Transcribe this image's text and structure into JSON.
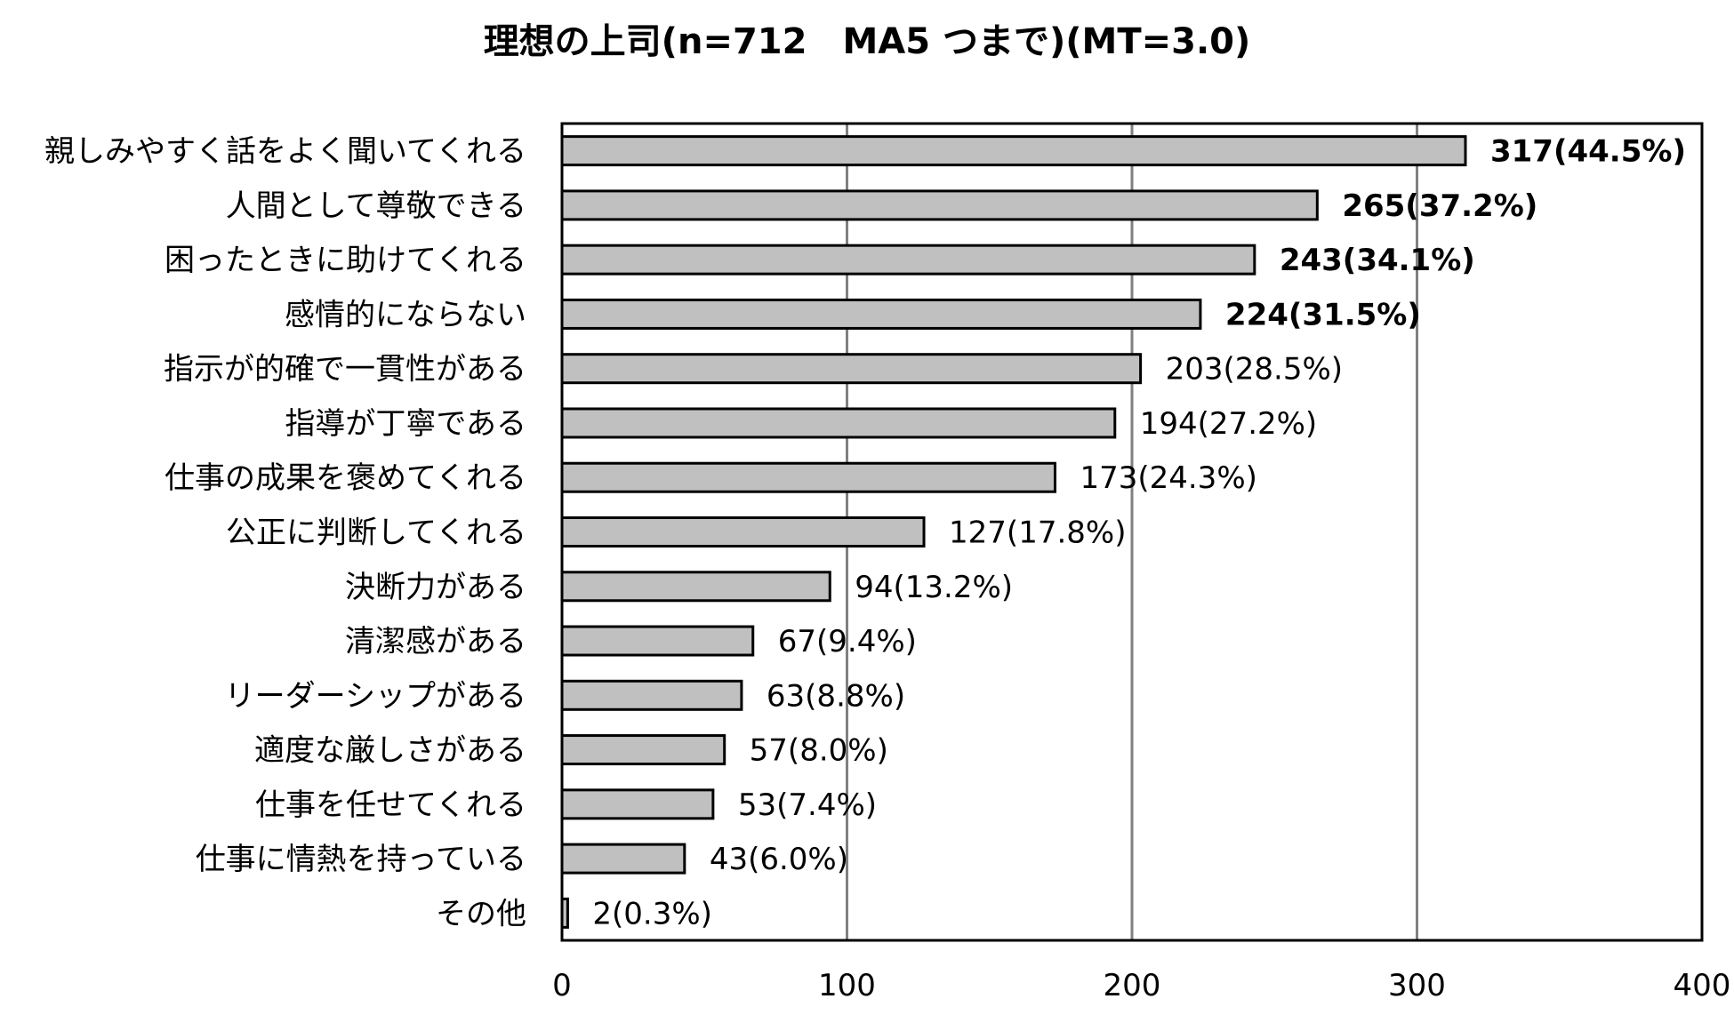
{
  "chart_data": {
    "type": "bar",
    "orientation": "horizontal",
    "title": "理想の上司(n=712　MA5 つまで)(MT=3.0)",
    "xlabel": "",
    "ylabel": "",
    "xlim": [
      0,
      400
    ],
    "x_ticks": [
      "0",
      "100",
      "200",
      "300",
      "400"
    ],
    "grid": true,
    "categories": [
      "親しみやすく話をよく聞いてくれる",
      "人間として尊敬できる",
      "困ったときに助けてくれる",
      "感情的にならない",
      "指示が的確で一貫性がある",
      "指導が丁寧である",
      "仕事の成果を褒めてくれる",
      "公正に判断してくれる",
      "決断力がある",
      "清潔感がある",
      "リーダーシップがある",
      "適度な厳しさがある",
      "仕事を任せてくれる",
      "仕事に情熱を持っている",
      "その他"
    ],
    "values": [
      317,
      265,
      243,
      224,
      203,
      194,
      173,
      127,
      94,
      67,
      63,
      57,
      53,
      43,
      2
    ],
    "data_labels": [
      "317(44.5%)",
      "265(37.2%)",
      "243(34.1%)",
      "224(31.5%)",
      "203(28.5%)",
      "194(27.2%)",
      "173(24.3%)",
      "127(17.8%)",
      "94(13.2%)",
      "67(9.4%)",
      "63(8.8%)",
      "57(8.0%)",
      "53(7.4%)",
      "43(6.0%)",
      "2(0.3%)"
    ],
    "bold_labels": [
      true,
      true,
      true,
      true,
      false,
      false,
      false,
      false,
      false,
      false,
      false,
      false,
      false,
      false,
      false
    ],
    "bar_color": "#c0c0c0",
    "bar_edge_color": "#000000",
    "grid_color": "#808080"
  }
}
